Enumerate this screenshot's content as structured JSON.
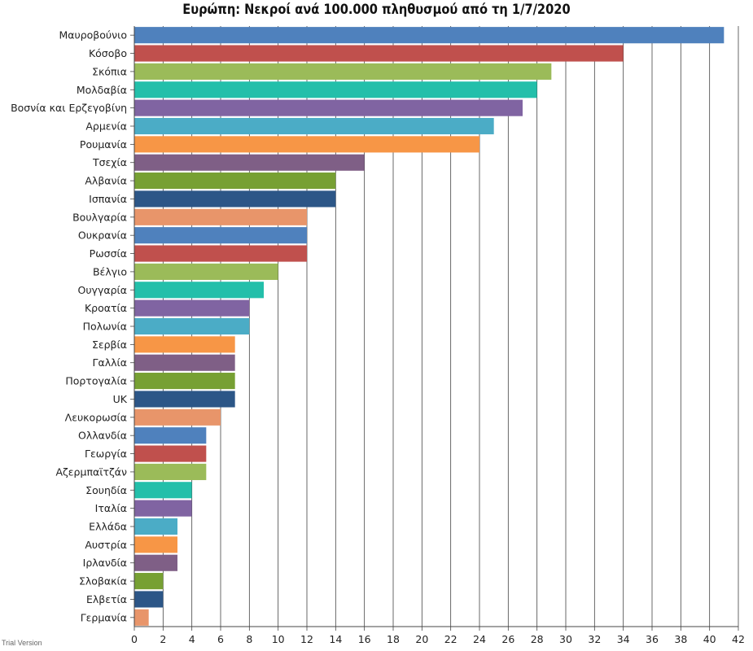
{
  "chart_data": {
    "type": "bar",
    "orientation": "horizontal",
    "title": "Ευρώπη: Νεκροί ανά 100.000 πληθυσμού από τη 1/7/2020",
    "categories": [
      "Μαυροβούνιο",
      "Κόσοβο",
      "Σκόπια",
      "Μολδαβία",
      "Βοσνία και Ερζεγοβίνη",
      "Αρμενία",
      "Ρουμανία",
      "Τσεχία",
      "Αλβανία",
      "Ισπανία",
      "Βουλγαρία",
      "Ουκρανία",
      "Ρωσσία",
      "Βέλγιο",
      "Ουγγαρία",
      "Κροατία",
      "Πολωνία",
      "Σερβία",
      "Γαλλία",
      "Πορτογαλία",
      "UK",
      "Λευκορωσία",
      "Ολλανδία",
      "Γεωργία",
      "Αζερμπαϊτζάν",
      "Σουηδία",
      "Ιταλία",
      "Ελλάδα",
      "Αυστρία",
      "Ιρλανδία",
      "Σλοβακία",
      "Ελβετία",
      "Γερμανία"
    ],
    "values": [
      41,
      34,
      29,
      28,
      27,
      25,
      24,
      16,
      14,
      14,
      12,
      12,
      12,
      10,
      9,
      8,
      8,
      7,
      7,
      7,
      7,
      6,
      5,
      5,
      5,
      4,
      4,
      3,
      3,
      3,
      2,
      2,
      1
    ],
    "colors": [
      "#4f81bd",
      "#c0504d",
      "#9bbb59",
      "#23bfaa",
      "#8064a2",
      "#4bacc6",
      "#f79646",
      "#7f5f86",
      "#77a033",
      "#2c5687",
      "#e8956a",
      "#4f81bd",
      "#c0504d",
      "#9bbb59",
      "#23bfaa",
      "#8064a2",
      "#4bacc6",
      "#f79646",
      "#7f5f86",
      "#77a033",
      "#2c5687",
      "#e8956a",
      "#4f81bd",
      "#c0504d",
      "#9bbb59",
      "#23bfaa",
      "#8064a2",
      "#4bacc6",
      "#f79646",
      "#7f5f86",
      "#77a033",
      "#2c5687",
      "#e8956a"
    ],
    "x_ticks": [
      "0",
      "2",
      "4",
      "6",
      "8",
      "10",
      "12",
      "14",
      "16",
      "18",
      "20",
      "22",
      "24",
      "26",
      "28",
      "30",
      "32",
      "34",
      "36",
      "38",
      "40",
      "42"
    ],
    "xlim": [
      0,
      42
    ],
    "grid": true,
    "xlabel": "",
    "ylabel": ""
  },
  "watermark": "Trial Version"
}
